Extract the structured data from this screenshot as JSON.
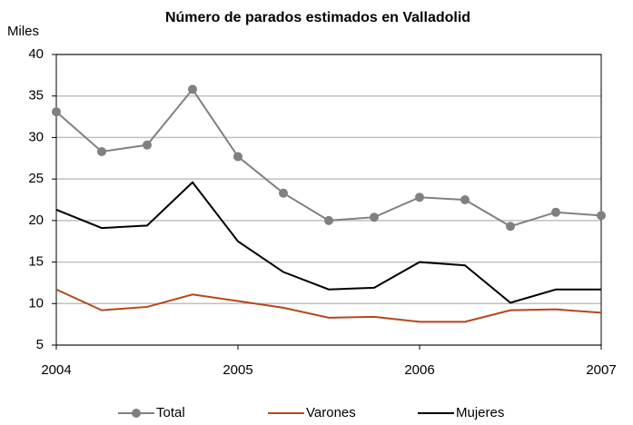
{
  "chart_data": {
    "type": "line",
    "title": "Número de parados estimados en  Valladolid",
    "ylabel": "Miles",
    "x": [
      2004,
      2004.25,
      2004.5,
      2004.75,
      2005,
      2005.25,
      2005.5,
      2005.75,
      2006,
      2006.25,
      2006.5,
      2006.75,
      2007
    ],
    "xlim": [
      2004,
      2007
    ],
    "xticks": [
      2004,
      2005,
      2006,
      2007
    ],
    "ylim": [
      5,
      40
    ],
    "yticks": [
      5,
      10,
      15,
      20,
      25,
      30,
      35,
      40
    ],
    "grid": true,
    "legend": "bottom",
    "series": [
      {
        "name": "Total",
        "color": "#808080",
        "marker": "circle",
        "values": [
          33.1,
          28.3,
          29.1,
          35.8,
          27.7,
          23.3,
          20.0,
          20.4,
          22.8,
          22.5,
          19.3,
          21.0,
          20.6
        ]
      },
      {
        "name": "Varones",
        "color": "#b5461a",
        "values": [
          11.7,
          9.2,
          9.6,
          11.1,
          10.3,
          9.5,
          8.3,
          8.4,
          7.8,
          7.8,
          9.2,
          9.3,
          8.9
        ]
      },
      {
        "name": "Mujeres",
        "color": "#000000",
        "values": [
          21.3,
          19.1,
          19.4,
          24.6,
          17.5,
          13.8,
          11.7,
          11.9,
          15.0,
          14.6,
          10.1,
          11.7,
          11.7
        ]
      }
    ]
  }
}
